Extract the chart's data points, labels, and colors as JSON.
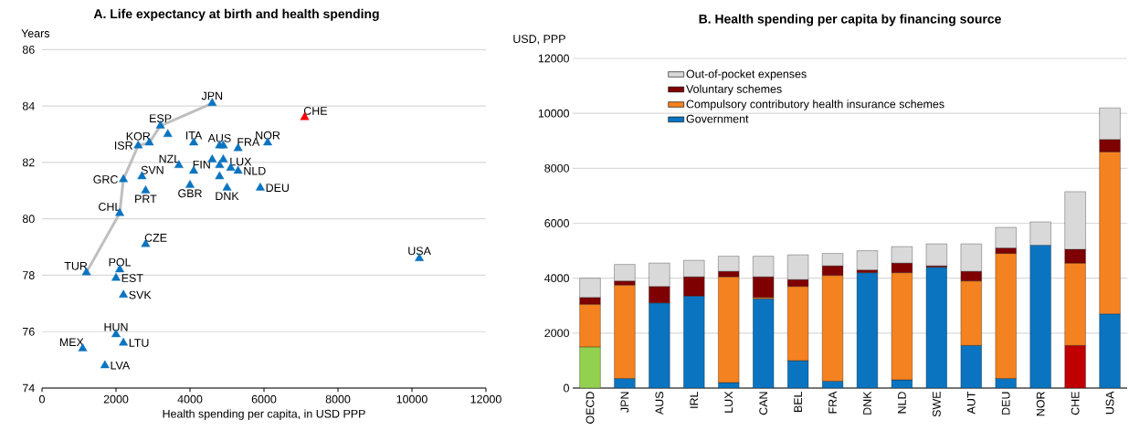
{
  "chart_data": [
    {
      "type": "scatter",
      "title": "A. Life expectancy at birth and health spending",
      "xlabel": "Health spending per capita, in USD PPP",
      "ylabel": "Years",
      "xlim": [
        0,
        12000
      ],
      "ylim": [
        74,
        86
      ],
      "xticks": [
        0,
        2000,
        4000,
        6000,
        8000,
        10000,
        12000
      ],
      "yticks": [
        74,
        76,
        78,
        80,
        82,
        84,
        86
      ],
      "grid": "y",
      "marker": "triangle",
      "series": [
        {
          "type": "line",
          "marker": "none",
          "color": "#bfbfbf",
          "x": [
            1200,
            2100,
            2200,
            2600,
            2900,
            3200,
            4600
          ],
          "values": [
            78.1,
            80.2,
            81.4,
            82.6,
            82.7,
            83.3,
            84.1
          ]
        },
        {
          "x": [
            4600,
            7100,
            3200,
            4100,
            2900,
            2600,
            3700,
            4800,
            5300,
            6100,
            5100,
            5300,
            4100,
            2700,
            2200,
            2800,
            4000,
            5000,
            5900,
            2100,
            2800,
            10200,
            1200,
            2100,
            2000,
            2200,
            2000,
            1100,
            2200,
            1700,
            3400,
            4900,
            4600,
            4900,
            4800,
            4800
          ],
          "values": [
            84.1,
            83.6,
            83.3,
            82.7,
            82.7,
            82.6,
            81.9,
            82.6,
            82.5,
            82.7,
            81.8,
            81.7,
            81.7,
            81.5,
            81.4,
            81.0,
            81.2,
            81.1,
            81.1,
            80.2,
            79.1,
            78.6,
            78.1,
            78.2,
            77.9,
            77.3,
            75.9,
            75.4,
            75.6,
            74.8,
            83.0,
            82.6,
            82.1,
            82.1,
            81.9,
            81.5
          ],
          "colors": [
            "#0a74c0",
            "#ff0000",
            "#0a74c0",
            "#0a74c0",
            "#0a74c0",
            "#0a74c0",
            "#0a74c0",
            "#0a74c0",
            "#0a74c0",
            "#0a74c0",
            "#0a74c0",
            "#0a74c0",
            "#0a74c0",
            "#0a74c0",
            "#0a74c0",
            "#0a74c0",
            "#0a74c0",
            "#0a74c0",
            "#0a74c0",
            "#0a74c0",
            "#0a74c0",
            "#0a74c0",
            "#0a74c0",
            "#0a74c0",
            "#0a74c0",
            "#0a74c0",
            "#0a74c0",
            "#0a74c0",
            "#0a74c0",
            "#0a74c0",
            "#0a74c0",
            "#0a74c0",
            "#0a74c0",
            "#0a74c0",
            "#0a74c0",
            "#0a74c0"
          ]
        }
      ],
      "annotations": [
        {
          "text": "JPN",
          "x": 4600,
          "y": 84.1
        },
        {
          "text": "CHE",
          "x": 7100,
          "y": 83.6
        },
        {
          "text": "ESP",
          "x": 3200,
          "y": 83.3
        },
        {
          "text": "ITA",
          "x": 4100,
          "y": 82.7
        },
        {
          "text": "KOR",
          "x": 2900,
          "y": 82.7
        },
        {
          "text": "ISR",
          "x": 2600,
          "y": 82.6
        },
        {
          "text": "NZL",
          "x": 3700,
          "y": 81.9
        },
        {
          "text": "AUS",
          "x": 4800,
          "y": 82.6
        },
        {
          "text": "FRA",
          "x": 5300,
          "y": 82.5
        },
        {
          "text": "NOR",
          "x": 6100,
          "y": 82.7
        },
        {
          "text": "LUX",
          "x": 5100,
          "y": 81.8
        },
        {
          "text": "NLD",
          "x": 5300,
          "y": 81.7
        },
        {
          "text": "FIN",
          "x": 4100,
          "y": 81.7
        },
        {
          "text": "SVN",
          "x": 2700,
          "y": 81.5
        },
        {
          "text": "GRC",
          "x": 2200,
          "y": 81.4
        },
        {
          "text": "PRT",
          "x": 2800,
          "y": 81.0
        },
        {
          "text": "GBR",
          "x": 4000,
          "y": 81.2
        },
        {
          "text": "DNK",
          "x": 5000,
          "y": 81.1
        },
        {
          "text": "DEU",
          "x": 5900,
          "y": 81.1
        },
        {
          "text": "CHL",
          "x": 2100,
          "y": 80.2
        },
        {
          "text": "CZE",
          "x": 2800,
          "y": 79.1
        },
        {
          "text": "USA",
          "x": 10200,
          "y": 78.6
        },
        {
          "text": "TUR",
          "x": 1200,
          "y": 78.1
        },
        {
          "text": "POL",
          "x": 2100,
          "y": 78.2
        },
        {
          "text": "EST",
          "x": 2000,
          "y": 77.9
        },
        {
          "text": "SVK",
          "x": 2200,
          "y": 77.3
        },
        {
          "text": "HUN",
          "x": 2000,
          "y": 75.9
        },
        {
          "text": "MEX",
          "x": 1100,
          "y": 75.4
        },
        {
          "text": "LTU",
          "x": 2200,
          "y": 75.6
        },
        {
          "text": "LVA",
          "x": 1700,
          "y": 74.8
        }
      ]
    },
    {
      "type": "bar",
      "stacked": true,
      "title": "B. Health spending per capita by financing source",
      "ylabel": "USD, PPP",
      "categories": [
        "OECD",
        "JPN",
        "AUS",
        "IRL",
        "LUX",
        "CAN",
        "BEL",
        "FRA",
        "DNK",
        "NLD",
        "SWE",
        "AUT",
        "DEU",
        "NOR",
        "CHE",
        "USA"
      ],
      "ylim": [
        0,
        12000
      ],
      "yticks": [
        0,
        2000,
        4000,
        6000,
        8000,
        10000,
        12000
      ],
      "grid": "y",
      "legend": "top left",
      "series": [
        {
          "name": "Government",
          "color": "#0a74c0",
          "values": [
            1500,
            350,
            3100,
            3350,
            200,
            3250,
            1000,
            250,
            4200,
            300,
            4400,
            1550,
            350,
            5200,
            1550,
            2700
          ],
          "colors": [
            "#92d050",
            "#0a74c0",
            "#0a74c0",
            "#0a74c0",
            "#0a74c0",
            "#0a74c0",
            "#0a74c0",
            "#0a74c0",
            "#0a74c0",
            "#0a74c0",
            "#0a74c0",
            "#0a74c0",
            "#0a74c0",
            "#0a74c0",
            "#c00000",
            "#0a74c0"
          ]
        },
        {
          "name": "Compulsory contributory health insurance schemes",
          "color": "#f58220",
          "values": [
            1550,
            3400,
            null,
            null,
            3850,
            50,
            2700,
            3850,
            null,
            3900,
            null,
            2350,
            4550,
            null,
            3000,
            5900
          ]
        },
        {
          "name": "Voluntary schemes",
          "color": "#7f0000",
          "values": [
            250,
            150,
            600,
            700,
            200,
            750,
            250,
            350,
            100,
            350,
            50,
            350,
            200,
            null,
            500,
            450
          ]
        },
        {
          "name": "Out-of-pocket expenses",
          "color": "#d9d9d9",
          "values": [
            700,
            600,
            850,
            600,
            550,
            750,
            900,
            450,
            700,
            600,
            800,
            1000,
            750,
            850,
            2100,
            1150
          ]
        }
      ]
    }
  ]
}
